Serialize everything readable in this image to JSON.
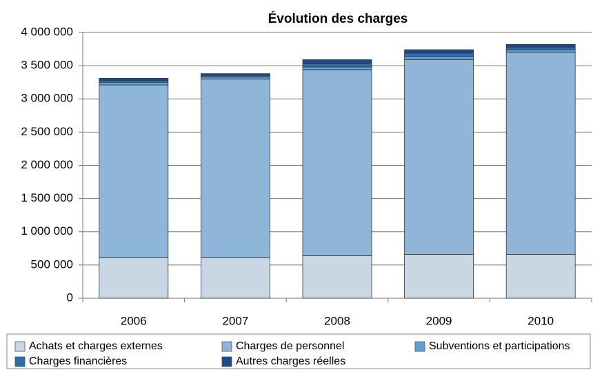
{
  "chart_data": {
    "type": "stacked_bar",
    "title": "Évolution des charges",
    "categories": [
      "2006",
      "2007",
      "2008",
      "2009",
      "2010"
    ],
    "series": [
      {
        "name": "Achats et charges externes",
        "color": "#c9d7e4",
        "values": [
          610000,
          610000,
          640000,
          660000,
          660000
        ]
      },
      {
        "name": "Charges de personnel",
        "color": "#8fb5d9",
        "values": [
          2600000,
          2690000,
          2800000,
          2930000,
          3040000
        ]
      },
      {
        "name": "Subventions et participations",
        "color": "#5f9fd4",
        "values": [
          40000,
          30000,
          40000,
          50000,
          40000
        ]
      },
      {
        "name": "Charges financières",
        "color": "#2a6db0",
        "values": [
          30000,
          25000,
          50000,
          50000,
          40000
        ]
      },
      {
        "name": "Autres charges réelles",
        "color": "#1c4a8a",
        "values": [
          30000,
          25000,
          60000,
          50000,
          40000
        ]
      }
    ],
    "ylim": [
      0,
      4000000
    ],
    "yticks": [
      0,
      {
        "value": 500000,
        "label": "500 000"
      },
      {
        "value": 1000000,
        "label": "1 000 000"
      },
      {
        "value": 1500000,
        "label": "1 500 000"
      },
      {
        "value": 2000000,
        "label": "2 000 000"
      },
      {
        "value": 2500000,
        "label": "2 500 000"
      },
      {
        "value": 3000000,
        "label": "3 000 000"
      },
      {
        "value": 3500000,
        "label": "3 500 000"
      },
      {
        "value": 4000000,
        "label": "4 000 000"
      }
    ],
    "grid": true,
    "legend": "bottom"
  }
}
